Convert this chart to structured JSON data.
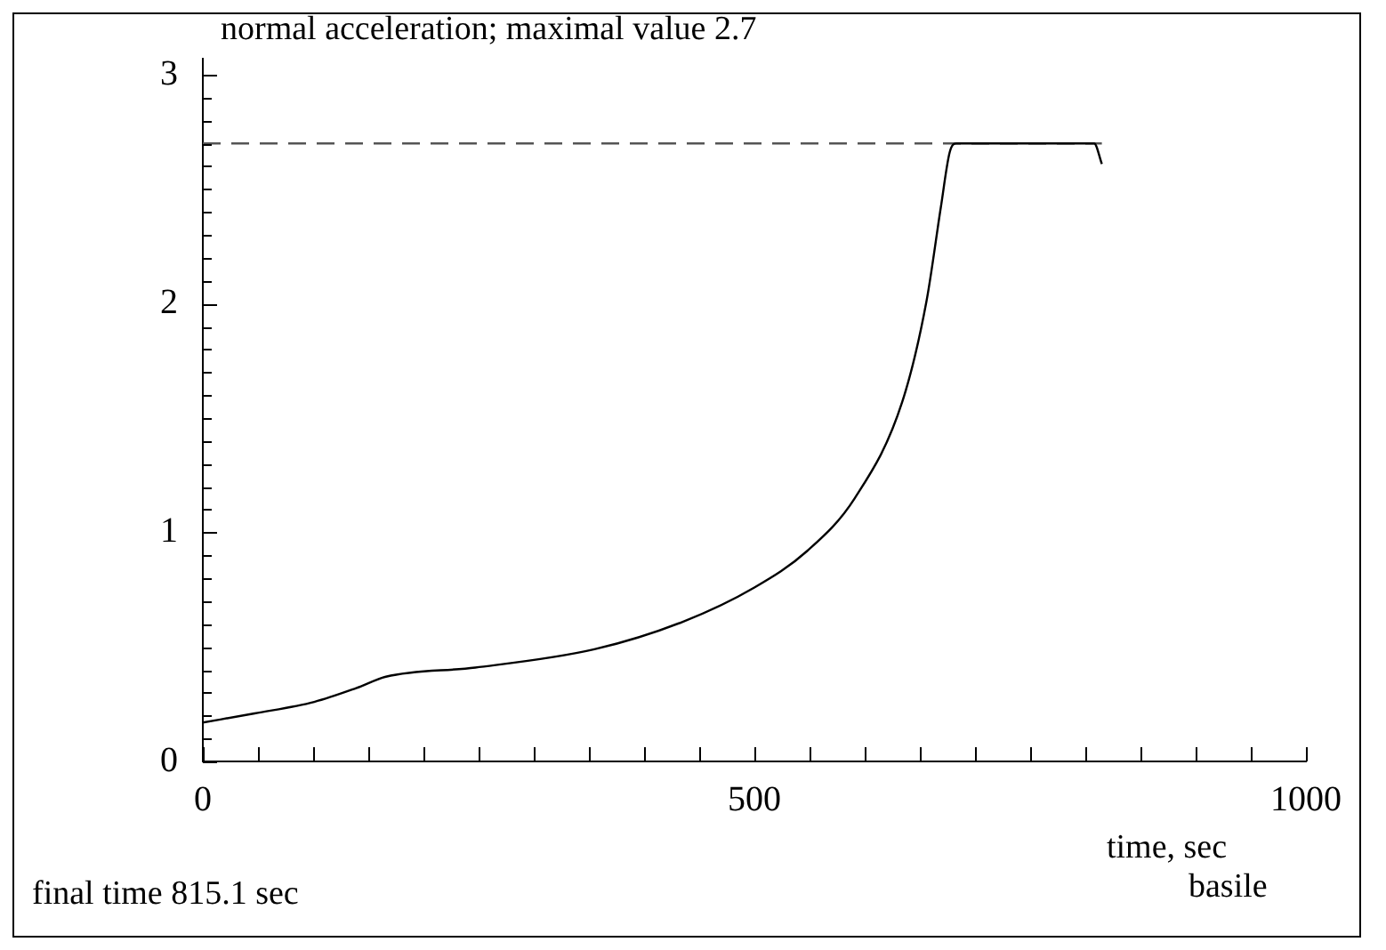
{
  "chart_data": {
    "type": "line",
    "title": "normal acceleration; maximal value 2.7",
    "xlabel": "time, sec",
    "annotations": [
      "final time  815.1 sec",
      "basile"
    ],
    "series": [
      {
        "color": "#000000",
        "line_style": "solid",
        "x": [
          0,
          47,
          101,
          139,
          166,
          247,
          355,
          435,
          500,
          548,
          591,
          634,
          656,
          669,
          677,
          683,
          740,
          808,
          815
        ],
        "values": [
          0.17,
          0.21,
          0.26,
          0.32,
          0.37,
          0.41,
          0.49,
          0.61,
          0.76,
          0.92,
          1.15,
          1.57,
          2.01,
          2.42,
          2.66,
          2.7,
          2.7,
          2.7,
          2.61
        ]
      },
      {
        "color": "#555555",
        "line_style": "dashed",
        "x": [
          0,
          815
        ],
        "values": [
          2.7,
          2.7
        ]
      }
    ],
    "xlim": [
      0,
      1000
    ],
    "ylim": [
      0,
      3.07
    ],
    "xticks": [
      0,
      {
        "value": 50,
        "label": null
      },
      {
        "value": 100,
        "label": null
      },
      {
        "value": 150,
        "label": null
      },
      {
        "value": 200,
        "label": null
      },
      {
        "value": 250,
        "label": null
      },
      {
        "value": 300,
        "label": null
      },
      {
        "value": 350,
        "label": null
      },
      {
        "value": 400,
        "label": null
      },
      {
        "value": 450,
        "label": null
      },
      500,
      {
        "value": 550,
        "label": null
      },
      {
        "value": 600,
        "label": null
      },
      {
        "value": 650,
        "label": null
      },
      {
        "value": 700,
        "label": null
      },
      {
        "value": 750,
        "label": null
      },
      {
        "value": 800,
        "label": null
      },
      {
        "value": 850,
        "label": null
      },
      {
        "value": 900,
        "label": null
      },
      {
        "value": 950,
        "label": null
      },
      1000
    ],
    "yticks": [
      0,
      {
        "value": 0.1,
        "label": null
      },
      {
        "value": 0.2,
        "label": null
      },
      {
        "value": 0.3,
        "label": null
      },
      {
        "value": 0.4,
        "label": null
      },
      {
        "value": 0.5,
        "label": null
      },
      {
        "value": 0.6,
        "label": null
      },
      {
        "value": 0.7,
        "label": null
      },
      {
        "value": 0.8,
        "label": null
      },
      {
        "value": 0.9,
        "label": null
      },
      1,
      {
        "value": 1.1,
        "label": null
      },
      {
        "value": 1.2,
        "label": null
      },
      {
        "value": 1.3,
        "label": null
      },
      {
        "value": 1.4,
        "label": null
      },
      {
        "value": 1.5,
        "label": null
      },
      {
        "value": 1.6,
        "label": null
      },
      {
        "value": 1.7,
        "label": null
      },
      {
        "value": 1.8,
        "label": null
      },
      {
        "value": 1.9,
        "label": null
      },
      2,
      {
        "value": 2.1,
        "label": null
      },
      {
        "value": 2.2,
        "label": null
      },
      {
        "value": 2.3,
        "label": null
      },
      {
        "value": 2.4,
        "label": null
      },
      {
        "value": 2.5,
        "label": null
      },
      {
        "value": 2.6,
        "label": null
      },
      {
        "value": 2.7,
        "label": null
      },
      {
        "value": 2.8,
        "label": null
      },
      {
        "value": 2.9,
        "label": null
      },
      3
    ],
    "grid": false,
    "legend": false,
    "marker": "none"
  }
}
